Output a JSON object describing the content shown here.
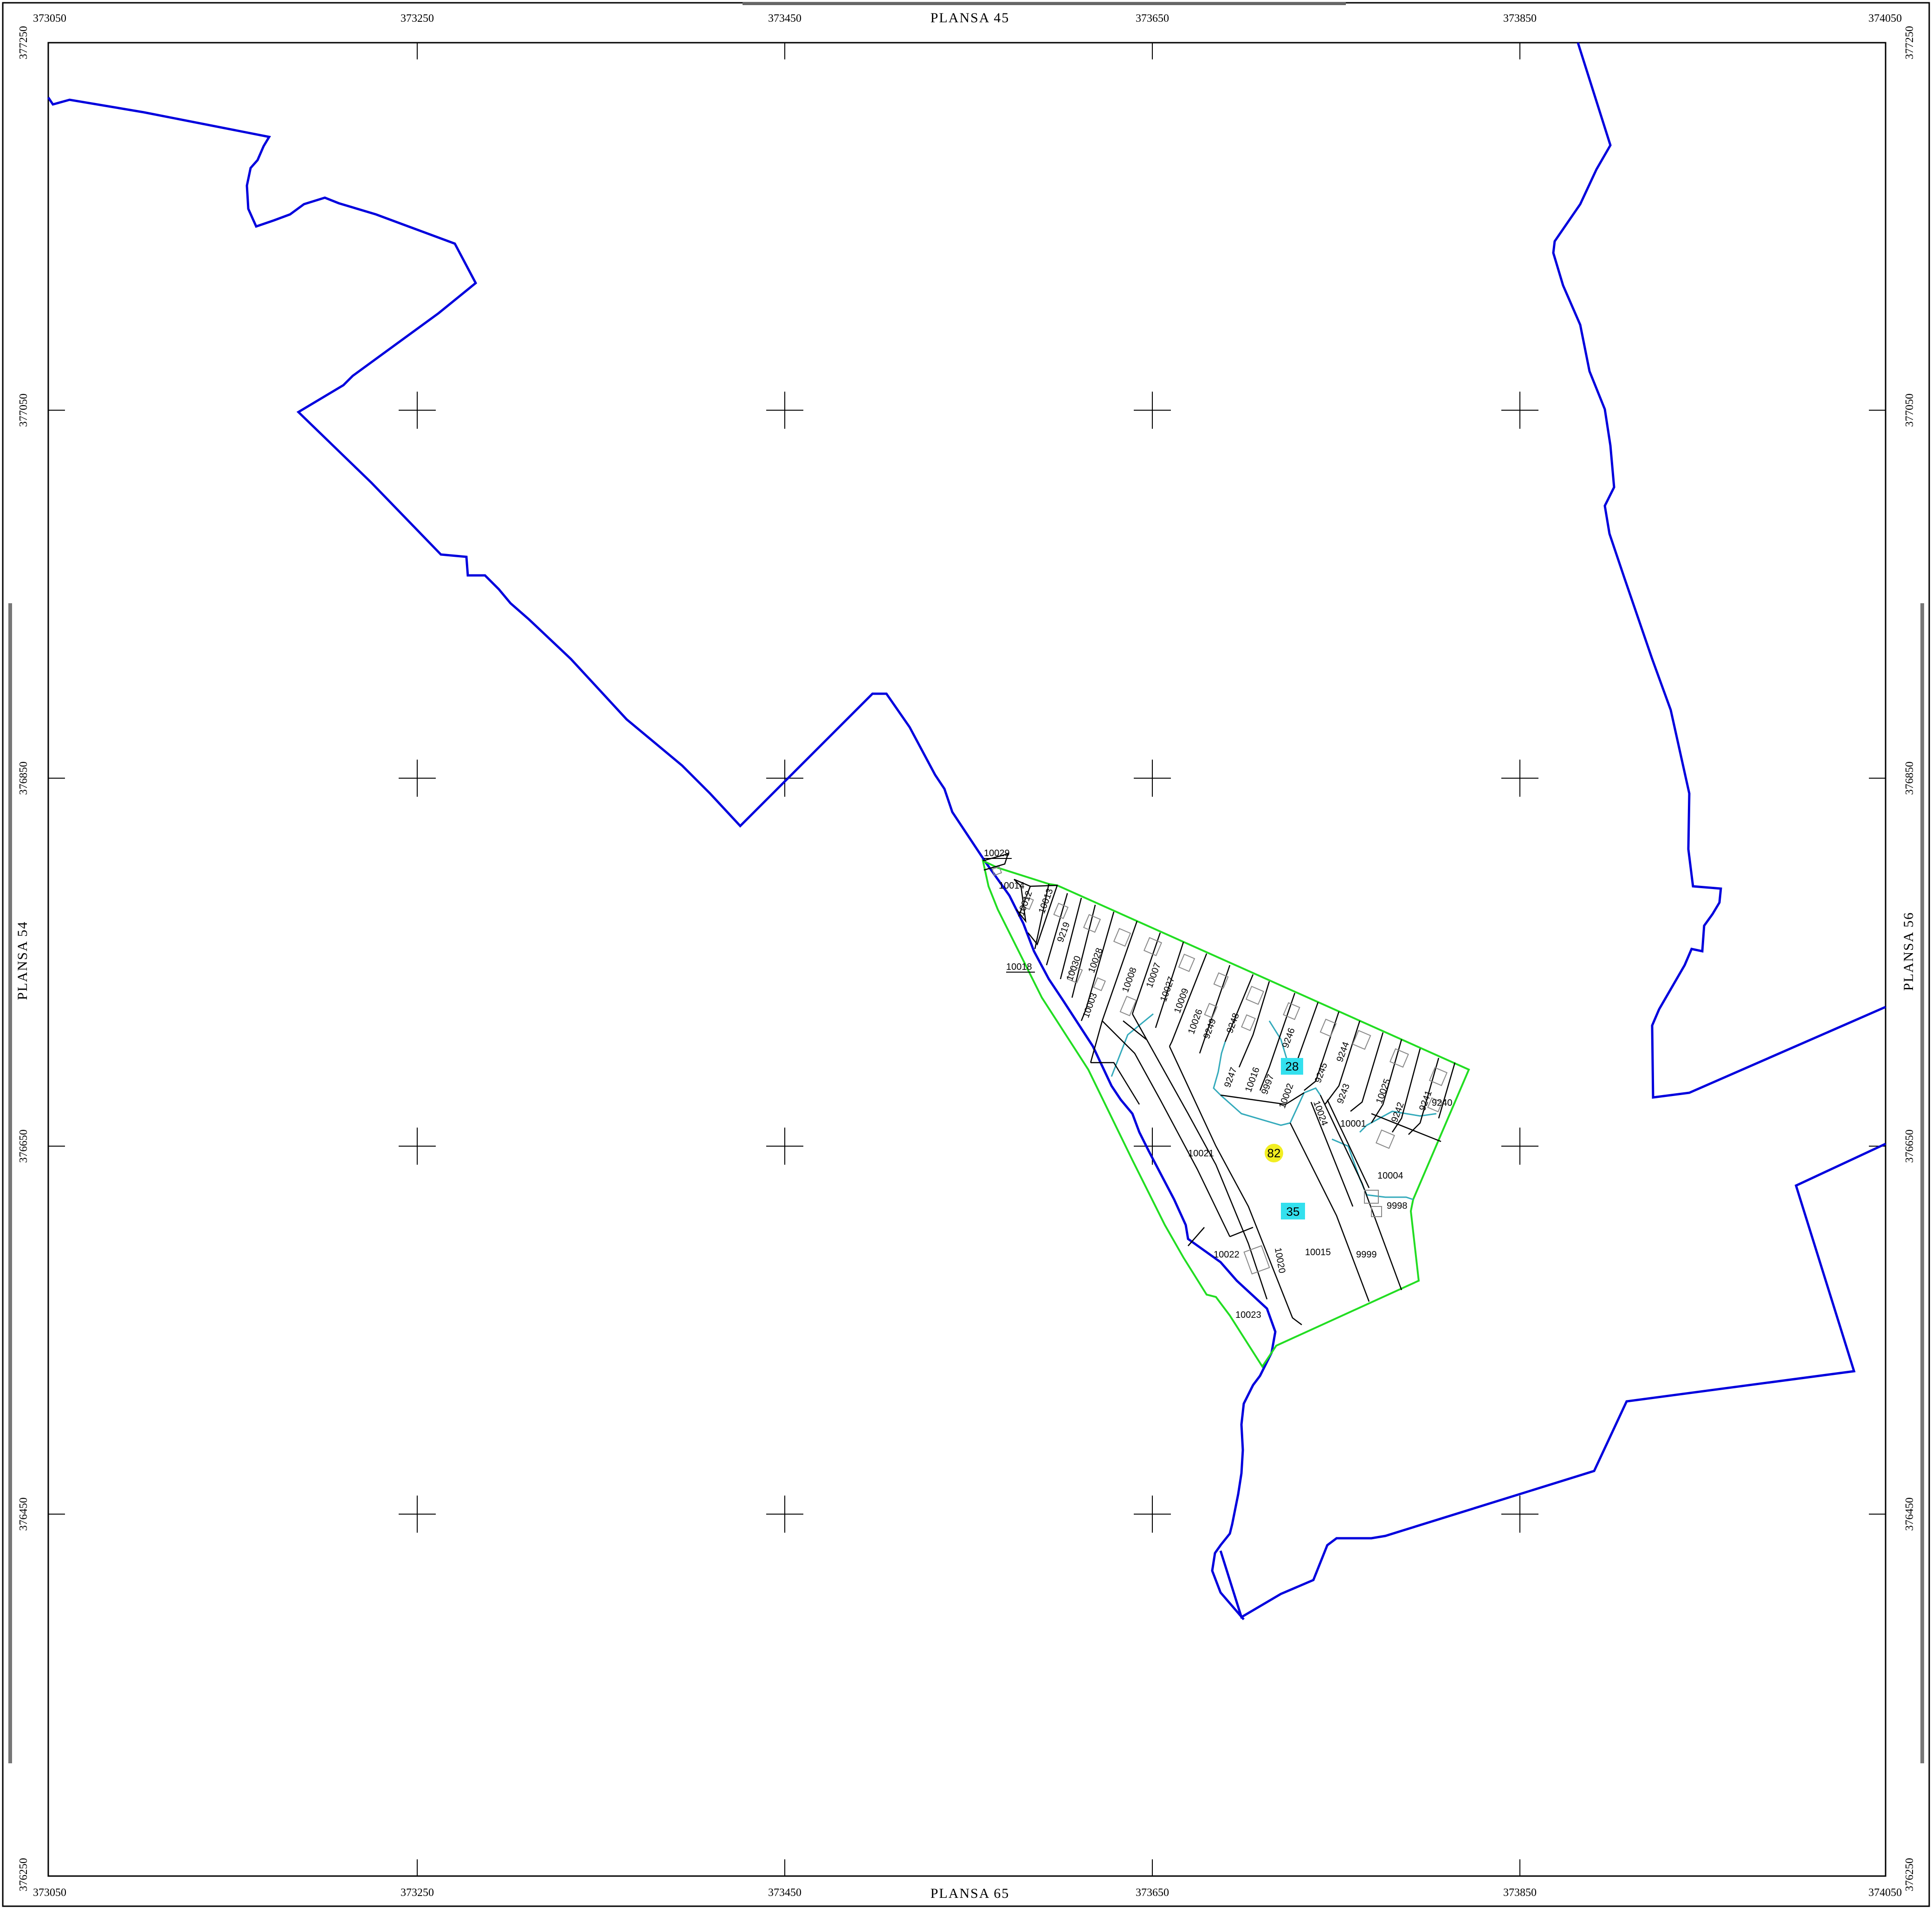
{
  "map": {
    "x_ticks": [
      "373050",
      "373250",
      "373450",
      "373650",
      "373850",
      "374050"
    ],
    "y_ticks": [
      "377250",
      "377050",
      "376850",
      "376650",
      "376450",
      "376250"
    ],
    "adjacent_sheets": {
      "top": "PLANSA 45",
      "bottom": "PLANSA 65",
      "left": "PLANSA 54",
      "right": "PLANSA 56"
    },
    "colors": {
      "boundary": "#0000dd",
      "sector": "#22dd22",
      "parcel": "#000000",
      "building": "#888888",
      "sub_zone": "#33aabb",
      "badge_cyan": "#33e0ee",
      "badge_yellow": "#f2ee22"
    },
    "badges": [
      {
        "label": "28",
        "style": "cyan"
      },
      {
        "label": "82",
        "style": "yellow"
      },
      {
        "label": "35",
        "style": "cyan"
      }
    ],
    "parcel_labels": [
      "10029",
      "10014",
      "10012",
      "10013",
      "9219",
      "10018",
      "10030",
      "10028",
      "10003",
      "10008",
      "10007",
      "10027",
      "10009",
      "10026",
      "9249",
      "9248",
      "9247",
      "10016",
      "9997",
      "9246",
      "10002",
      "9245",
      "9244",
      "10024",
      "9243",
      "10025",
      "9242",
      "9241",
      "9240",
      "10001",
      "10004",
      "9998",
      "10021",
      "10022",
      "10020",
      "10015",
      "9999",
      "10023"
    ]
  }
}
